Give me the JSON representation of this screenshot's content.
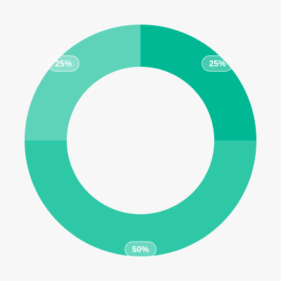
{
  "chart_data": {
    "type": "donut",
    "values": [
      25,
      50,
      25
    ],
    "value_labels": [
      "25%",
      "50%",
      "25%"
    ],
    "colors": [
      "#00b894",
      "#2ec8a7",
      "#5ed3ba"
    ]
  }
}
